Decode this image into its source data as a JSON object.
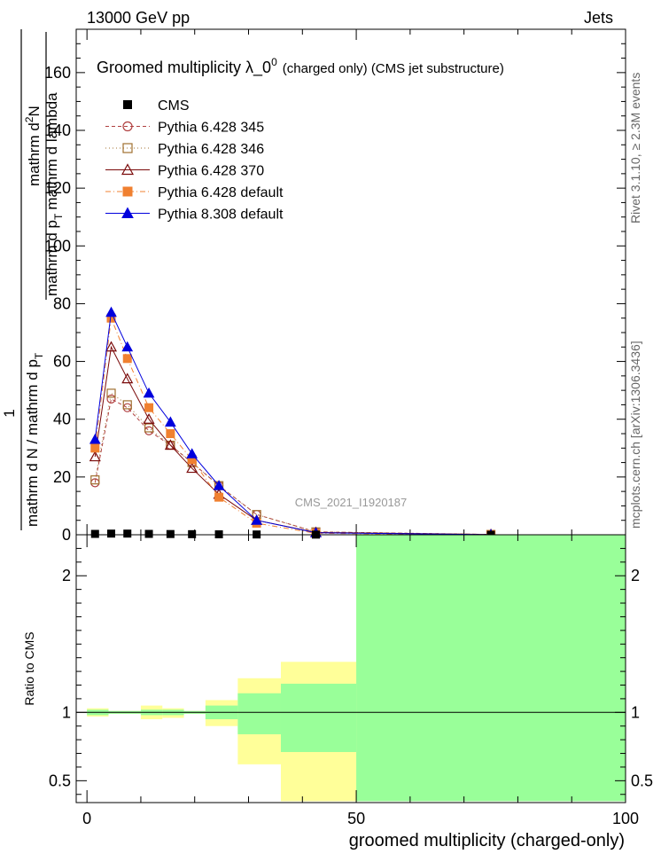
{
  "header": {
    "left": "13000 GeV pp",
    "right": "Jets"
  },
  "side_labels": {
    "rivet": "Rivet 3.1.10, ≥ 2.3M events",
    "mcplots": "mcplots.cern.ch [arXiv:1306.3436]"
  },
  "watermark": "CMS_2021_I1920187",
  "colors": {
    "ratio_band_inner": "#99ff99",
    "ratio_band_outer": "#ffff99"
  },
  "chart_data": [
    {
      "type": "line",
      "title": "Groomed multiplicity  λ_0^0 (charged only) (CMS jet substructure)",
      "title_main": "Groomed multiplicity  λ_0",
      "title_sup": "0",
      "title_suffix": "(charged only) (CMS jet substructure)",
      "ylabel_numerator": "1",
      "ylabel_left": "mathrm d N / mathrm d p",
      "ylabel_left_sub": "T",
      "ylabel_right_top": "mathrm d",
      "ylabel_right_top_sup": "2",
      "ylabel_right_top_end": "N",
      "ylabel_right_bottom": "mathrm d p",
      "ylabel_right_bottom_sub": "T",
      "ylabel_right_bottom_end": "mathrm d lambda",
      "xlim": [
        -2,
        100
      ],
      "ylim": [
        0,
        175
      ],
      "yticks": [
        0,
        20,
        40,
        60,
        80,
        100,
        120,
        140,
        160
      ],
      "legend_position": "top-left",
      "series": [
        {
          "name": "CMS",
          "color": "#000000",
          "marker": "square",
          "line": "none",
          "x": [
            1.5,
            4.5,
            7.5,
            11.5,
            15.5,
            19.5,
            24.5,
            31.5,
            42.5,
            75
          ],
          "y": [
            0.3,
            0.4,
            0.4,
            0.3,
            0.25,
            0.2,
            0.15,
            0.1,
            0.05,
            0.0
          ]
        },
        {
          "name": "Pythia 6.428 345",
          "color": "#b04040",
          "marker": "open-circle",
          "line": "dashed",
          "x": [
            1.5,
            4.5,
            7.5,
            11.5,
            15.5,
            19.5,
            24.5,
            31.5,
            42.5,
            75
          ],
          "y": [
            18,
            47,
            44,
            36,
            31,
            25,
            17,
            7,
            1,
            0.1
          ]
        },
        {
          "name": "Pythia 6.428 346",
          "color": "#a07030",
          "marker": "open-square",
          "line": "dotted",
          "x": [
            1.5,
            4.5,
            7.5,
            11.5,
            15.5,
            19.5,
            24.5,
            31.5,
            42.5,
            75
          ],
          "y": [
            19,
            49,
            45,
            37,
            31,
            25,
            17,
            7,
            1,
            0.1
          ]
        },
        {
          "name": "Pythia 6.428 370",
          "color": "#7a0a0a",
          "marker": "open-triangle",
          "line": "solid",
          "x": [
            1.5,
            4.5,
            7.5,
            11.5,
            15.5,
            19.5,
            24.5,
            31.5,
            42.5,
            75
          ],
          "y": [
            27,
            65,
            54,
            40,
            31,
            23,
            14,
            5,
            0.8,
            0.1
          ]
        },
        {
          "name": "Pythia 6.428 default",
          "color": "#f08030",
          "marker": "filled-square",
          "line": "dashdot",
          "x": [
            1.5,
            4.5,
            7.5,
            11.5,
            15.5,
            19.5,
            24.5,
            31.5,
            42.5,
            75
          ],
          "y": [
            30,
            75,
            61,
            44,
            35,
            26,
            13,
            4,
            0.5,
            0.05
          ]
        },
        {
          "name": "Pythia 8.308 default",
          "color": "#0000dd",
          "marker": "filled-triangle",
          "line": "solid",
          "x": [
            1.5,
            4.5,
            7.5,
            11.5,
            15.5,
            19.5,
            24.5,
            31.5,
            42.5,
            75
          ],
          "y": [
            33,
            77,
            65,
            49,
            39,
            28,
            17,
            5,
            0.7,
            0.05
          ]
        }
      ]
    },
    {
      "type": "area",
      "ylabel": "Ratio to CMS",
      "xlabel": "groomed multiplicity (charged-only)",
      "xlim": [
        -2,
        100
      ],
      "ylim": [
        0.34,
        2.3
      ],
      "yticks": [
        0.5,
        1,
        2
      ],
      "xticks": [
        0,
        50,
        100
      ],
      "reference_line": 1,
      "bands": [
        {
          "x0": 0,
          "x1": 4,
          "inner": [
            0.98,
            1.02
          ],
          "outer": [
            0.97,
            1.03
          ]
        },
        {
          "x0": 4,
          "x1": 10,
          "inner": [
            0.99,
            1.01
          ],
          "outer": [
            0.99,
            1.01
          ]
        },
        {
          "x0": 10,
          "x1": 14,
          "inner": [
            0.98,
            1.02
          ],
          "outer": [
            0.95,
            1.05
          ]
        },
        {
          "x0": 14,
          "x1": 18,
          "inner": [
            0.98,
            1.02
          ],
          "outer": [
            0.96,
            1.03
          ]
        },
        {
          "x0": 18,
          "x1": 22,
          "inner": [
            0.99,
            1.01
          ],
          "outer": [
            0.99,
            1.01
          ]
        },
        {
          "x0": 22,
          "x1": 28,
          "inner": [
            0.95,
            1.05
          ],
          "outer": [
            0.9,
            1.09
          ]
        },
        {
          "x0": 28,
          "x1": 36,
          "inner": [
            0.84,
            1.14
          ],
          "outer": [
            0.62,
            1.25
          ]
        },
        {
          "x0": 36,
          "x1": 50,
          "inner": [
            0.71,
            1.21
          ],
          "outer": [
            0.35,
            1.37
          ]
        },
        {
          "x0": 50,
          "x1": 100,
          "inner": [
            0.35,
            2.3
          ],
          "outer": [
            0.35,
            2.3
          ]
        }
      ]
    }
  ]
}
